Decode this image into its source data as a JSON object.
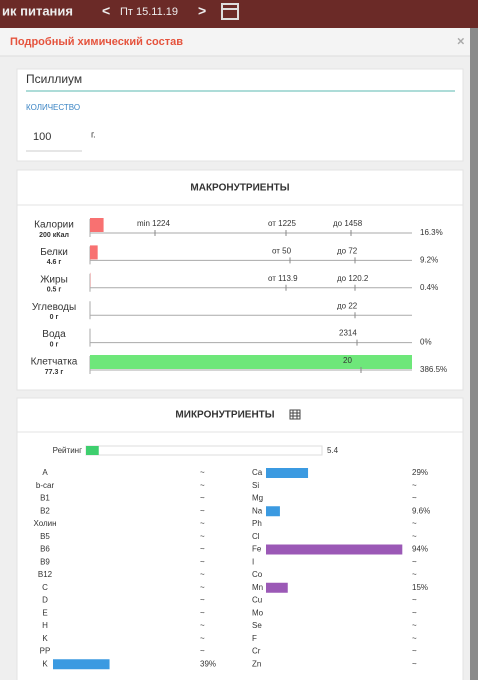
{
  "topbar": {
    "title": "ик питания",
    "prev": "<",
    "date": "Пт 15.11.19",
    "next": ">"
  },
  "modal": {
    "title": "Подробный химический состав",
    "close": "×"
  },
  "product": {
    "name": "Псиллиум",
    "quantity_label": "КОЛИЧЕСТВО",
    "quantity": "100",
    "unit": "г."
  },
  "macros": {
    "title": "МАКРОНУТРИЕНТЫ",
    "color_low": "#f87171",
    "color_high": "#6ee77a",
    "rows": [
      {
        "name": "Калории",
        "amount": "200 кКал",
        "markers": [
          "min 1224",
          "от 1225",
          "до 1458"
        ],
        "percent": 16.3,
        "percent_label": "16.3%",
        "color": "#f87171"
      },
      {
        "name": "Белки",
        "amount": "4.6 г",
        "markers": [
          "от 50",
          "до 72"
        ],
        "percent": 9.2,
        "percent_label": "9.2%",
        "color": "#f87171"
      },
      {
        "name": "Жиры",
        "amount": "0.5 г",
        "markers": [
          "от 113.9",
          "до 120.2"
        ],
        "percent": 0.4,
        "percent_label": "0.4%",
        "color": "#f87171"
      },
      {
        "name": "Углеводы",
        "amount": "0 г",
        "markers": [
          "до 22"
        ],
        "percent": null,
        "percent_label": null,
        "color": "#f87171"
      },
      {
        "name": "Вода",
        "amount": "0 г",
        "markers": [
          "2314"
        ],
        "percent": 0,
        "percent_label": "0%",
        "color": "#f87171"
      },
      {
        "name": "Клетчатка",
        "amount": "77.3 г",
        "markers": [
          "20"
        ],
        "percent": 386.5,
        "percent_label": "386.5%",
        "color": "#6ee77a"
      }
    ]
  },
  "micros": {
    "title": "МИКРОНУТРИЕНТЫ",
    "xlim": [
      0,
      100
    ],
    "rating": {
      "label": "Рейтинг",
      "value": 5.4,
      "color": "#3ecf6e"
    },
    "vitamins": [
      {
        "name": "A",
        "value": null,
        "label": "~"
      },
      {
        "name": "b-car",
        "value": null,
        "label": "~"
      },
      {
        "name": "B1",
        "value": null,
        "label": "~"
      },
      {
        "name": "B2",
        "value": null,
        "label": "~"
      },
      {
        "name": "Холин",
        "value": null,
        "label": "~"
      },
      {
        "name": "B5",
        "value": null,
        "label": "~"
      },
      {
        "name": "B6",
        "value": null,
        "label": "~"
      },
      {
        "name": "B9",
        "value": null,
        "label": "~"
      },
      {
        "name": "B12",
        "value": null,
        "label": "~"
      },
      {
        "name": "C",
        "value": null,
        "label": "~"
      },
      {
        "name": "D",
        "value": null,
        "label": "~"
      },
      {
        "name": "E",
        "value": null,
        "label": "~"
      },
      {
        "name": "H",
        "value": null,
        "label": "~"
      },
      {
        "name": "K",
        "value": null,
        "label": "~"
      },
      {
        "name": "PP",
        "value": null,
        "label": "~"
      },
      {
        "name": "K",
        "value": 39,
        "label": "39%",
        "color": "#3b9ae1"
      }
    ],
    "minerals": [
      {
        "name": "Ca",
        "value": 29,
        "label": "29%",
        "color": "#3b9ae1"
      },
      {
        "name": "Si",
        "value": null,
        "label": "~"
      },
      {
        "name": "Mg",
        "value": null,
        "label": "~"
      },
      {
        "name": "Na",
        "value": 9.6,
        "label": "9.6%",
        "color": "#3b9ae1"
      },
      {
        "name": "Ph",
        "value": null,
        "label": "~"
      },
      {
        "name": "Cl",
        "value": null,
        "label": "~"
      },
      {
        "name": "Fe",
        "value": 94,
        "label": "94%",
        "color": "#9b59b6"
      },
      {
        "name": "I",
        "value": null,
        "label": "~"
      },
      {
        "name": "Co",
        "value": null,
        "label": "~"
      },
      {
        "name": "Mn",
        "value": 15,
        "label": "15%",
        "color": "#9b59b6"
      },
      {
        "name": "Cu",
        "value": null,
        "label": "~"
      },
      {
        "name": "Mo",
        "value": null,
        "label": "~"
      },
      {
        "name": "Se",
        "value": null,
        "label": "~"
      },
      {
        "name": "F",
        "value": null,
        "label": "~"
      },
      {
        "name": "Cr",
        "value": null,
        "label": "~"
      },
      {
        "name": "Zn",
        "value": null,
        "label": "~"
      }
    ]
  }
}
